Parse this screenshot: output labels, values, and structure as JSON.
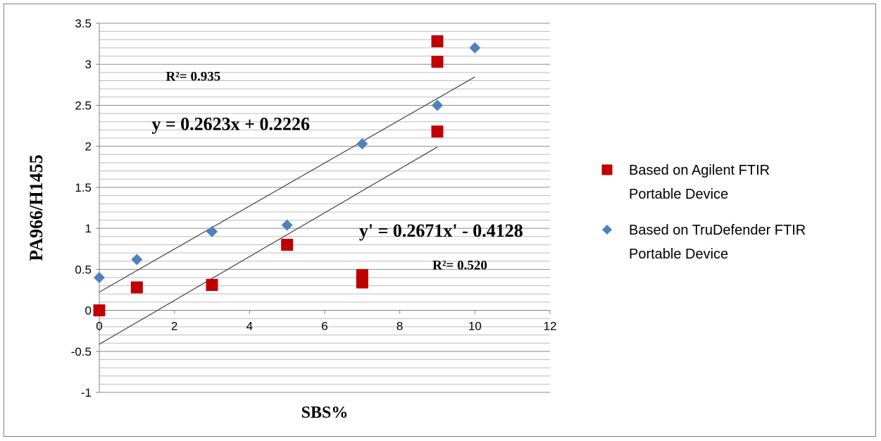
{
  "chart_data": {
    "type": "scatter",
    "xlabel": "SBS%",
    "ylabel": "PA966/H1455",
    "xlim": [
      0,
      12
    ],
    "ylim": [
      -1,
      3.5
    ],
    "x_ticks": [
      0,
      2,
      4,
      6,
      8,
      10,
      12
    ],
    "x_tick_labels": [
      "0",
      "2",
      "4",
      "6",
      "8",
      "10",
      "12"
    ],
    "y_ticks": [
      -1,
      -0.5,
      0,
      0.5,
      1,
      1.5,
      2,
      2.5,
      3,
      3.5
    ],
    "y_tick_labels": [
      "-1",
      "-0.5",
      "0",
      "0.5",
      "1",
      "1.5",
      "2",
      "2.5",
      "3",
      "3.5"
    ],
    "y_minor_step": 0.1,
    "grid": true,
    "legend_position": "right",
    "series": [
      {
        "name": "Based on Agilent FTIR Portable Device",
        "legend_lines": [
          "Based on Agilent FTIR",
          "Portable Device"
        ],
        "marker": "square",
        "color": "#C00000",
        "points": [
          [
            0,
            0
          ],
          [
            1,
            0.28
          ],
          [
            3,
            0.31
          ],
          [
            5,
            0.8
          ],
          [
            7,
            0.43
          ],
          [
            7,
            0.34
          ],
          [
            9,
            3.28
          ],
          [
            9,
            3.03
          ],
          [
            9,
            2.18
          ]
        ]
      },
      {
        "name": "Based on TruDefender FTIR Portable Device",
        "legend_lines": [
          "Based on TruDefender FTIR",
          "Portable Device"
        ],
        "marker": "diamond",
        "color": "#4F81BD",
        "points": [
          [
            0,
            0.4
          ],
          [
            1,
            0.62
          ],
          [
            3,
            0.96
          ],
          [
            5,
            1.04
          ],
          [
            7,
            2.03
          ],
          [
            9,
            2.5
          ],
          [
            10,
            3.2
          ]
        ]
      }
    ],
    "trendlines": [
      {
        "slope": 0.2623,
        "intercept": 0.2226,
        "x_range": [
          0,
          10
        ],
        "color": "#404040"
      },
      {
        "slope": 0.2671,
        "intercept": -0.4128,
        "x_range": [
          0,
          9
        ],
        "color": "#404040"
      }
    ],
    "annotations": [
      {
        "text": "R²= 0.935",
        "x": 2.5,
        "y": 2.8
      },
      {
        "text": "y = 0.2623x + 0.2226",
        "x": 3.5,
        "y": 2.2
      },
      {
        "text": "y' = 0.2671x' - 0.4128",
        "x": 9.1,
        "y": 0.9
      },
      {
        "text": "R²= 0.520",
        "x": 9.6,
        "y": 0.5
      }
    ]
  }
}
